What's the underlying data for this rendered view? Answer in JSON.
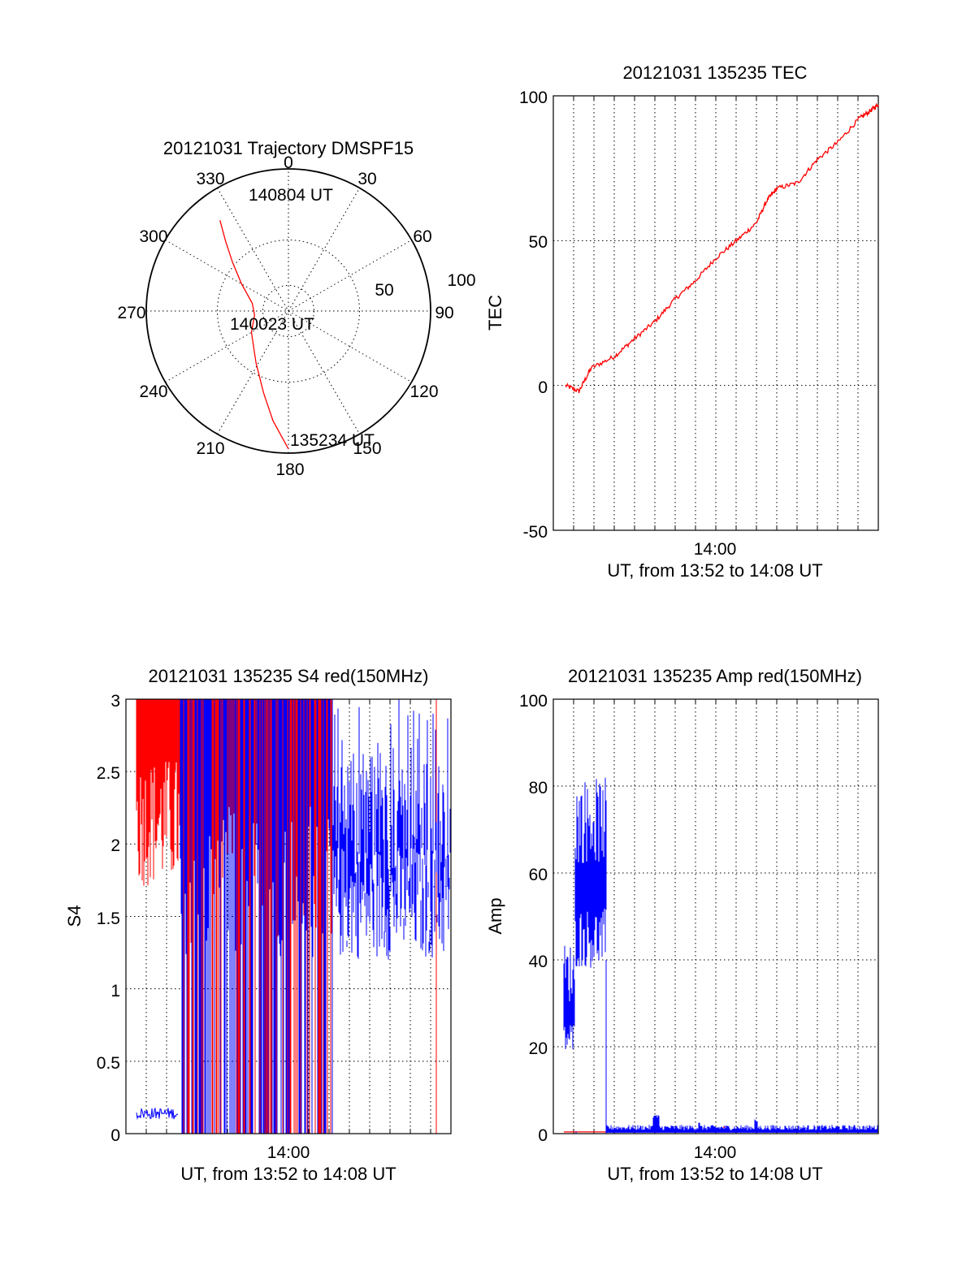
{
  "chart_data": [
    {
      "type": "polar",
      "title": "20121031 Trajectory DMSPF15",
      "angle_labels": [
        "0",
        "30",
        "60",
        "90",
        "120",
        "150",
        "180",
        "210",
        "240",
        "270",
        "300",
        "330"
      ],
      "radial_labels": [
        "50",
        "100"
      ],
      "elevation_range": [
        0,
        90
      ],
      "grid": true,
      "track_color": "#ff0000",
      "track": [
        {
          "az": 180,
          "r_frac": 0.97
        },
        {
          "az": 188,
          "r_frac": 0.78
        },
        {
          "az": 197,
          "r_frac": 0.6
        },
        {
          "az": 212,
          "r_frac": 0.43
        },
        {
          "az": 240,
          "r_frac": 0.3
        },
        {
          "az": 263,
          "r_frac": 0.24
        },
        {
          "az": 282,
          "r_frac": 0.26
        },
        {
          "az": 300,
          "r_frac": 0.38
        },
        {
          "az": 311,
          "r_frac": 0.52
        },
        {
          "az": 318,
          "r_frac": 0.66
        },
        {
          "az": 323,
          "r_frac": 0.8
        }
      ],
      "annotations": [
        {
          "text": "140804 UT",
          "at": "end"
        },
        {
          "text": "140023 UT",
          "at": "center"
        },
        {
          "text": "135234 UT",
          "at": "start"
        }
      ]
    },
    {
      "type": "line",
      "title": "20121031 135235 TEC",
      "ylabel": "TEC",
      "xlabel": "UT, from 13:52 to 14:08 UT",
      "x_tick_labels": [
        "14:00"
      ],
      "y_tick_labels": [
        "-50",
        "0",
        "50",
        "100"
      ],
      "xlim": [
        13.867,
        14.133
      ],
      "ylim": [
        -50,
        100
      ],
      "grid": true,
      "series": [
        {
          "color": "#ff0000",
          "x": [
            13.877,
            13.888,
            13.898,
            13.917,
            13.933,
            13.95,
            13.967,
            13.983,
            14.0,
            14.017,
            14.033,
            14.042,
            14.05,
            14.067,
            14.083,
            14.1,
            14.117,
            14.127,
            14.133
          ],
          "y": [
            0,
            -2,
            6,
            10,
            16,
            22,
            30,
            36,
            44,
            50,
            56,
            64,
            68,
            70,
            78,
            84,
            92,
            95,
            97
          ]
        }
      ]
    },
    {
      "type": "line",
      "title": "20121031 135235 S4 red(150MHz)",
      "ylabel": "S4",
      "xlabel": "UT, from 13:52 to 14:08 UT",
      "x_tick_labels": [
        "14:00"
      ],
      "y_tick_labels": [
        "0",
        "0.5",
        "1",
        "1.5",
        "2",
        "2.5",
        "3"
      ],
      "xlim": [
        13.867,
        14.133
      ],
      "ylim": [
        0,
        3
      ],
      "grid": true,
      "series": [
        {
          "color": "#ff0000",
          "noisy": true
        },
        {
          "color": "#0000ff",
          "noisy": true
        }
      ]
    },
    {
      "type": "line",
      "title": "20121031 135235 Amp red(150MHz)",
      "ylabel": "Amp",
      "xlabel": "UT, from 13:52 to 14:08 UT",
      "x_tick_labels": [
        "14:00"
      ],
      "y_tick_labels": [
        "0",
        "20",
        "40",
        "60",
        "80",
        "100"
      ],
      "xlim": [
        13.867,
        14.133
      ],
      "ylim": [
        0,
        100
      ],
      "grid": true,
      "series": [
        {
          "color": "#ff0000",
          "noisy": true
        },
        {
          "color": "#0000ff",
          "noisy": true
        }
      ]
    }
  ]
}
